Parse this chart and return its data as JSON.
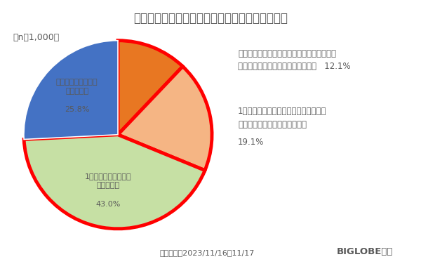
{
  "title": "昨今の物価上昇にともない生活に不安を感じるか",
  "n_label": "（n＝1,000）",
  "slices": [
    {
      "label_right_line1": "今までは感じなかったが、最近（ここ数ヶ月",
      "label_right_line2": "前から）不安を感じるようになった   12.1%",
      "label_inside": "",
      "pct": 12.1,
      "color": "#E87722"
    },
    {
      "label_right_line1": "1年以上前から感じていて、最近（ここ",
      "label_right_line2": "数ヶ月）より不安を感じている",
      "label_right_line3": "",
      "label_right_line4": "19.1%",
      "label_inside": "",
      "pct": 19.1,
      "color": "#F5B584"
    },
    {
      "label_inside_line1": "1年以上前から不安を",
      "label_inside_line2": "感じている",
      "label_inside_line3": "",
      "label_inside_line4": "43.0%",
      "label": "",
      "pct": 43.0,
      "color": "#C6E0A4"
    },
    {
      "label_inside_line1": "生活に不安を感じる",
      "label_inside_line2": "ことはない",
      "label_inside_line3": "",
      "label_inside_line4": "25.8%",
      "label": "",
      "pct": 25.8,
      "color": "#4472C4"
    }
  ],
  "highlight_wedges": [
    0,
    1,
    2
  ],
  "highlight_color": "#FF0000",
  "highlight_linewidth": 3.5,
  "footer_text": "調査期間：2023/11/16～11/17",
  "footer_brand": "BIGLOBE調べ",
  "background_color": "#FFFFFF",
  "text_color": "#595959",
  "startangle": 90
}
